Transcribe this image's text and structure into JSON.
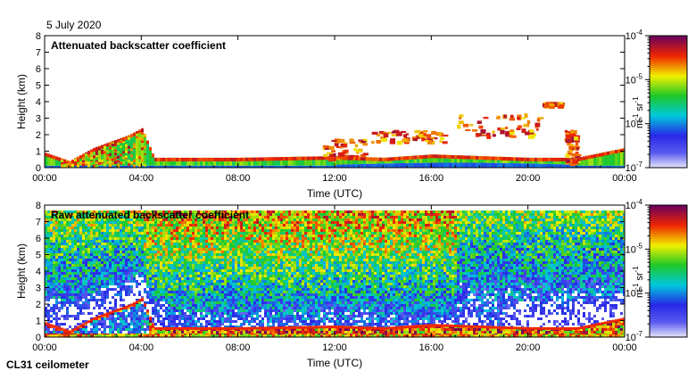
{
  "date": "5 July 2020",
  "instrument": "CL31 ceilometer",
  "chart_data": [
    {
      "type": "heatmap",
      "title": "Attenuated backscatter coefficient",
      "xlabel": "Time (UTC)",
      "ylabel": "Height (km)",
      "x_ticks": [
        "00:00",
        "04:00",
        "08:00",
        "12:00",
        "16:00",
        "20:00",
        "00:00"
      ],
      "x_range_hours": [
        0,
        24
      ],
      "y_ticks": [
        "0",
        "1",
        "2",
        "3",
        "4",
        "5",
        "6",
        "7",
        "8"
      ],
      "y_range_km": [
        0,
        8
      ],
      "colorbar": {
        "scale": "log",
        "range": [
          1e-07,
          0.0001
        ],
        "ticks": [
          {
            "base": "10",
            "exp": "-4",
            "value": 0.0001
          },
          {
            "base": "10",
            "exp": "-5",
            "value": 1e-05
          },
          {
            "base": "10",
            "exp": "-6",
            "value": 1e-06
          },
          {
            "base": "10",
            "exp": "-7",
            "value": 1e-07
          }
        ],
        "unit_label": {
          "m": "m",
          "m_exp": "-1",
          "sr": " sr",
          "sr_exp": "-1"
        }
      },
      "features": {
        "boundary_layer": [
          [
            0,
            0.9
          ],
          [
            1,
            0.4
          ],
          [
            2,
            1.2
          ],
          [
            3.5,
            2.0
          ],
          [
            4,
            2.4
          ],
          [
            4.5,
            0.6
          ],
          [
            8,
            0.6
          ],
          [
            12,
            0.7
          ],
          [
            14,
            0.6
          ],
          [
            16,
            0.8
          ],
          [
            20,
            0.6
          ],
          [
            22,
            0.6
          ],
          [
            24,
            1.2
          ]
        ],
        "rising_layer": [
          [
            0.7,
            0.3
          ],
          [
            1.5,
            0.8
          ],
          [
            2.5,
            1.4
          ],
          [
            3.5,
            2.1
          ],
          [
            4.1,
            2.6
          ]
        ],
        "cloud_segments": [
          {
            "x": [
              11.5,
              13.2
            ],
            "y": [
              0.6,
              1.8
            ]
          },
          {
            "x": [
              13.5,
              16.5
            ],
            "y": [
              1.6,
              2.3
            ]
          },
          {
            "x": [
              17.0,
              20.5
            ],
            "y": [
              1.9,
              3.3
            ]
          },
          {
            "x": [
              20.6,
              21.3
            ],
            "y": [
              3.8,
              4.0
            ]
          },
          {
            "x": [
              21.5,
              22.0
            ],
            "y": [
              0.3,
              2.3
            ]
          }
        ]
      }
    },
    {
      "type": "heatmap",
      "title": "Raw attenuated backscatter coefficient",
      "xlabel": "Time (UTC)",
      "ylabel": "Height (km)",
      "x_ticks": [
        "00:00",
        "04:00",
        "08:00",
        "12:00",
        "16:00",
        "20:00",
        "00:00"
      ],
      "x_range_hours": [
        0,
        24
      ],
      "y_ticks": [
        "0",
        "1",
        "2",
        "3",
        "4",
        "5",
        "6",
        "7",
        "8"
      ],
      "y_range_km": [
        0,
        8
      ],
      "colorbar": {
        "scale": "log",
        "range": [
          1e-07,
          0.0001
        ],
        "ticks": [
          {
            "base": "10",
            "exp": "-4",
            "value": 0.0001
          },
          {
            "base": "10",
            "exp": "-5",
            "value": 1e-05
          },
          {
            "base": "10",
            "exp": "-6",
            "value": 1e-06
          },
          {
            "base": "10",
            "exp": "-7",
            "value": 1e-07
          }
        ],
        "unit_label": {
          "m": "m",
          "m_exp": "-1",
          "sr": " sr",
          "sr_exp": "-1"
        }
      },
      "features": {
        "noise_top_km": 7.7,
        "noise_high_signal_hours": [
          4,
          17
        ],
        "boundary_layer": [
          [
            0,
            0.9
          ],
          [
            1,
            0.4
          ],
          [
            2,
            1.2
          ],
          [
            3.5,
            2.0
          ],
          [
            4,
            2.4
          ],
          [
            4.5,
            0.6
          ],
          [
            8,
            0.6
          ],
          [
            12,
            0.7
          ],
          [
            14,
            0.6
          ],
          [
            16,
            0.8
          ],
          [
            20,
            0.6
          ],
          [
            22,
            0.6
          ],
          [
            24,
            1.2
          ]
        ]
      }
    }
  ]
}
